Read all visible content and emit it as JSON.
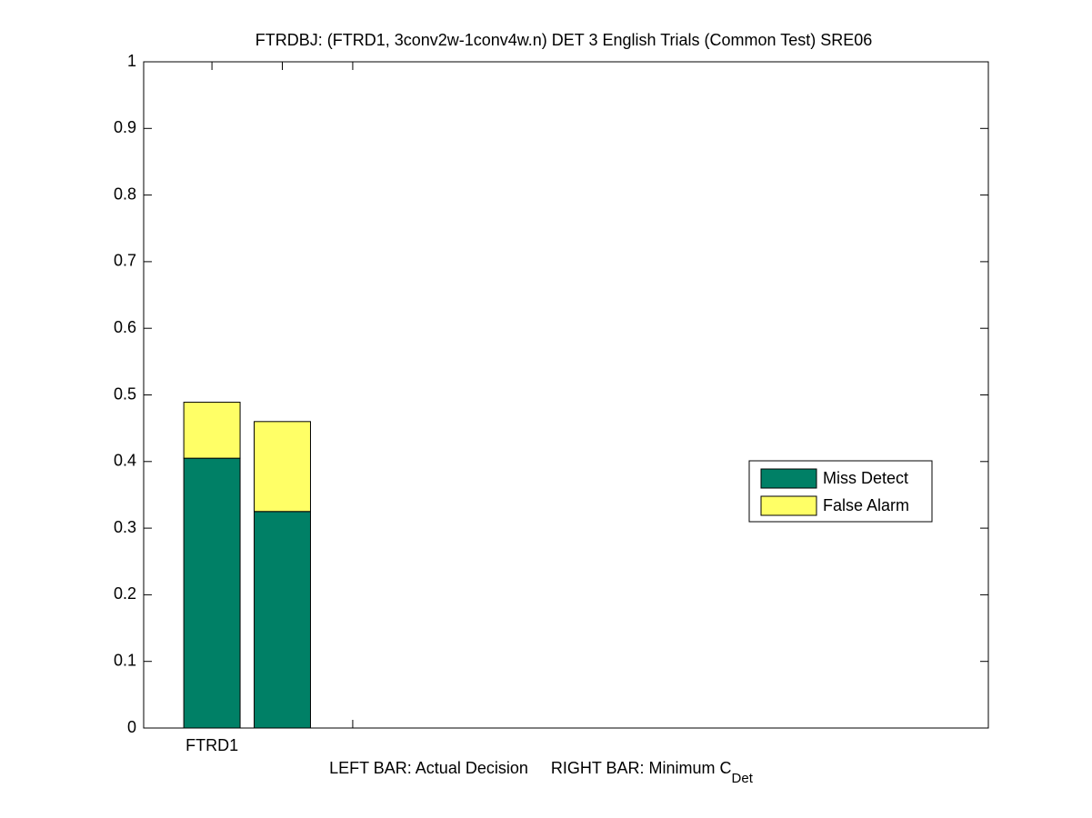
{
  "chart_data": {
    "type": "bar",
    "stacked": true,
    "title": "FTRDBJ: (FTRD1, 3conv2w-1conv4w.n) DET 3 English Trials (Common Test) SRE06",
    "xlabel": "LEFT BAR: Actual Decision     RIGHT BAR: Minimum C",
    "xlabel_subscript": "Det",
    "x": [
      1,
      2
    ],
    "series": [
      {
        "name": "Miss Detect",
        "color": "#008066",
        "values": [
          0.405,
          0.325
        ]
      },
      {
        "name": "False Alarm",
        "color": "#ffff66",
        "values": [
          0.084,
          0.135
        ]
      }
    ],
    "xlim": [
      0.03,
      12.03
    ],
    "xticks": [
      {
        "value": 1,
        "label": "FTRD1"
      },
      {
        "value": 2,
        "label": null
      },
      {
        "value": 3,
        "label": null
      }
    ],
    "ylim": [
      0,
      1
    ],
    "yticks": [
      0,
      0.1,
      0.2,
      0.3,
      0.4,
      0.5,
      0.6,
      0.7,
      0.8,
      0.9,
      1
    ],
    "grid": false,
    "legend": "right"
  }
}
